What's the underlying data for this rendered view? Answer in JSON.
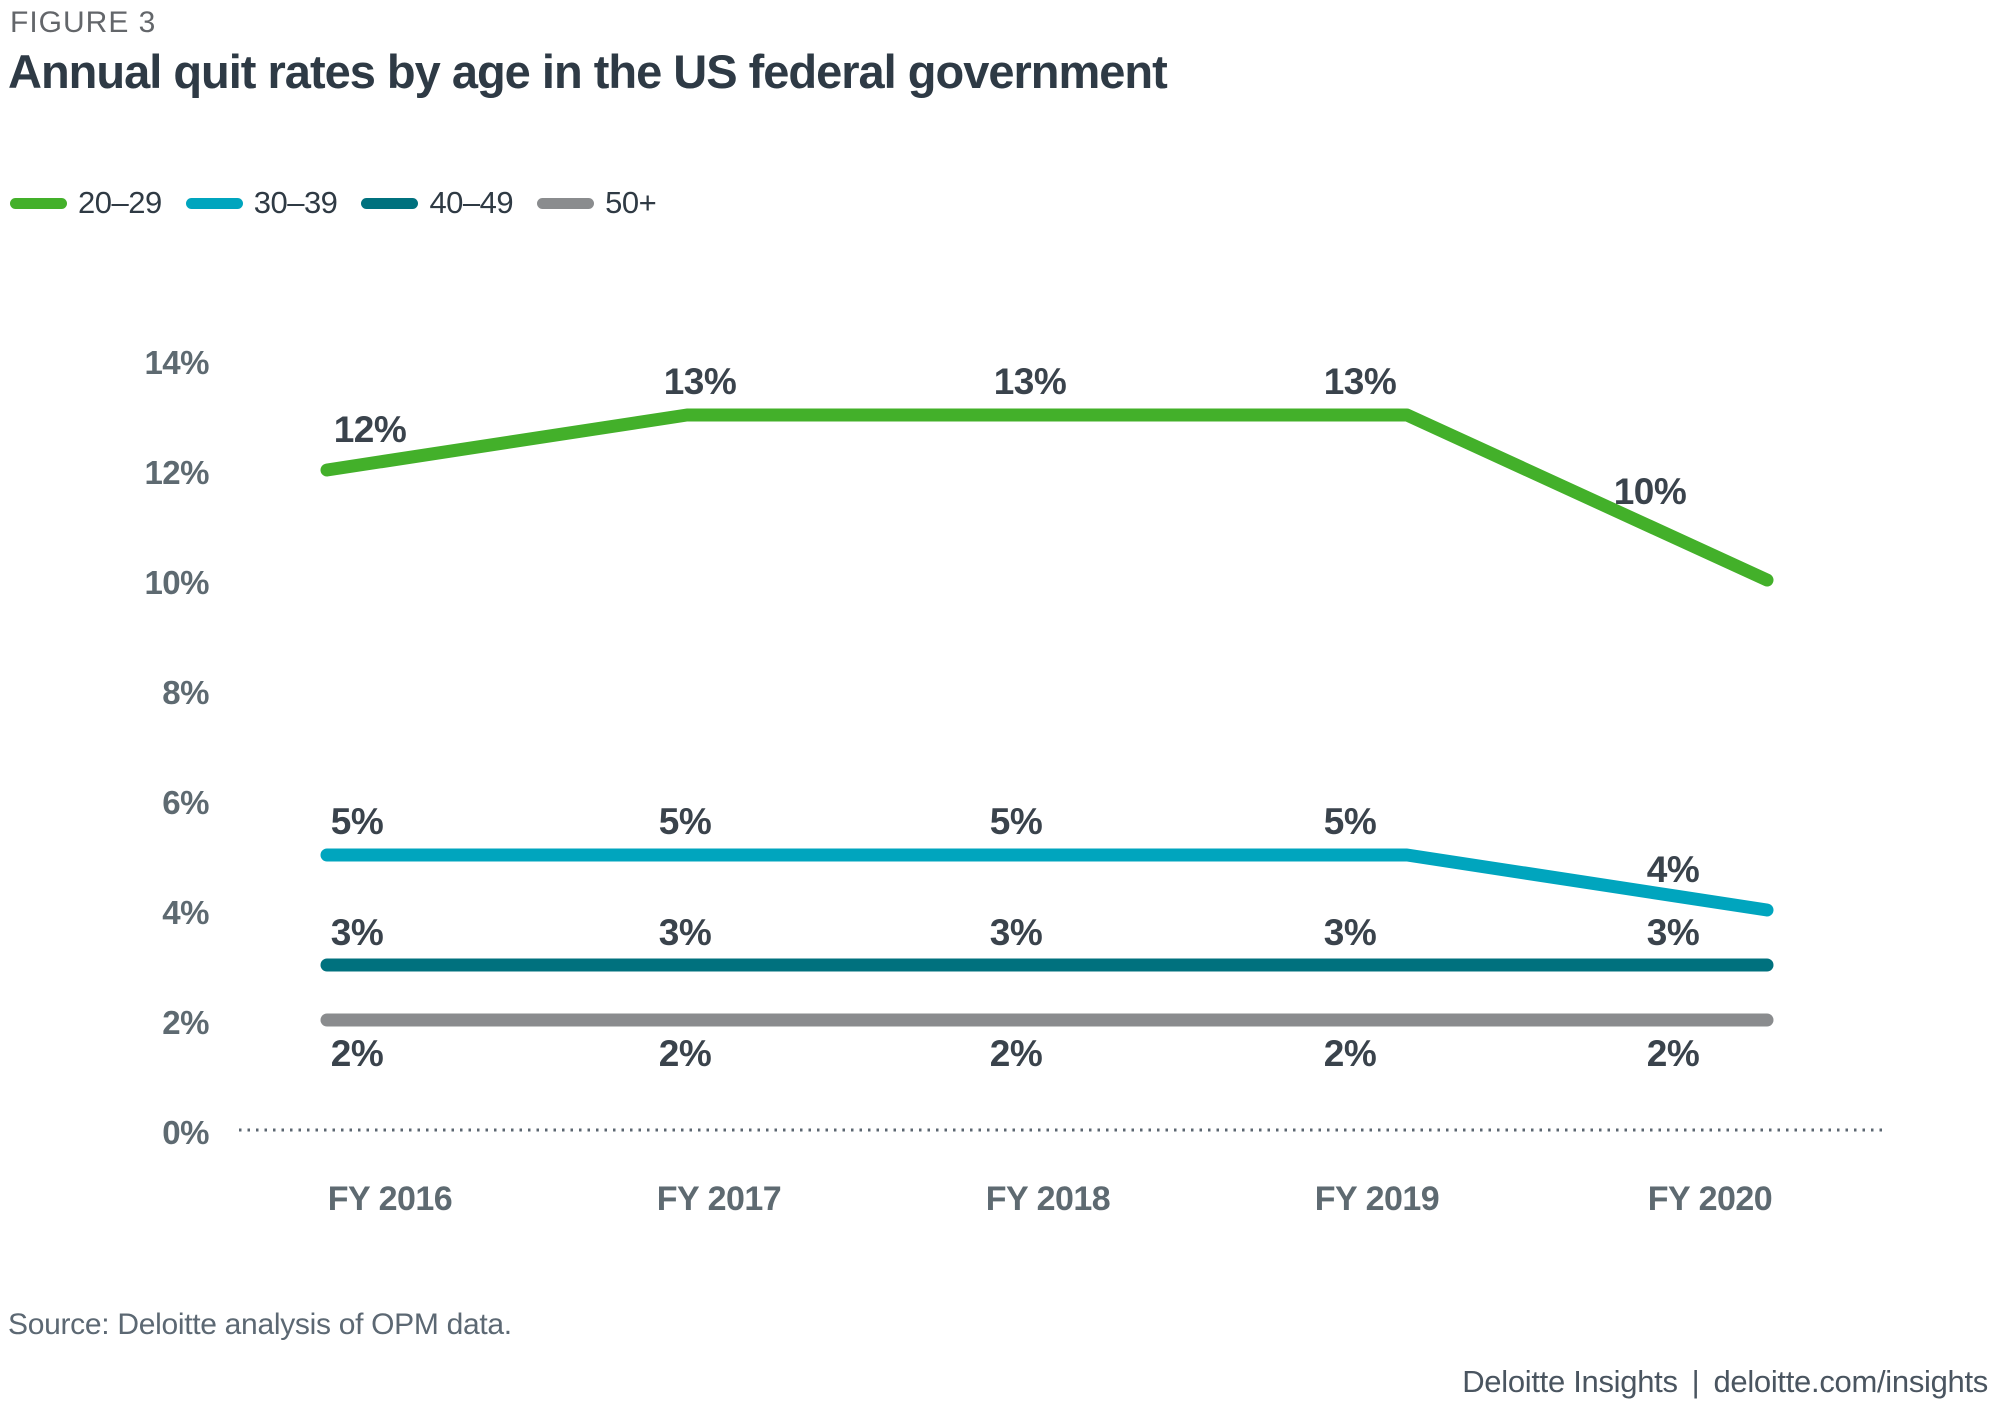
{
  "figure_label": "FIGURE 3",
  "title": "Annual quit rates by age in the US federal government",
  "source": "Source: Deloitte analysis of OPM data.",
  "footer": {
    "brand": "Deloitte Insights",
    "separator": "|",
    "url": "deloitte.com/insights"
  },
  "colors": {
    "green": "#43B02A",
    "cyan": "#00A5BE",
    "teal": "#00717E",
    "gray": "#8A8C8E",
    "axis_text": "#5E6A71",
    "data_label_text": "#3A434C",
    "baseline_dots": "#5B6670"
  },
  "chart_data": {
    "type": "line",
    "title": "Annual quit rates by age in the US federal government",
    "categories": [
      "FY 2016",
      "FY 2017",
      "FY 2018",
      "FY 2019",
      "FY 2020"
    ],
    "series": [
      {
        "name": "20–29",
        "color_key": "green",
        "values": [
          12,
          13,
          13,
          13,
          10
        ],
        "point_labels": [
          "12%",
          "13%",
          "13%",
          "13%",
          "10%"
        ]
      },
      {
        "name": "30–39",
        "color_key": "cyan",
        "values": [
          5,
          5,
          5,
          5,
          4
        ],
        "point_labels": [
          "5%",
          "5%",
          "5%",
          "5%",
          "4%"
        ]
      },
      {
        "name": "40–49",
        "color_key": "teal",
        "values": [
          3,
          3,
          3,
          3,
          3
        ],
        "point_labels": [
          "3%",
          "3%",
          "3%",
          "3%",
          "3%"
        ]
      },
      {
        "name": "50+",
        "color_key": "gray",
        "values": [
          2,
          2,
          2,
          2,
          2
        ],
        "point_labels": [
          "2%",
          "2%",
          "2%",
          "2%",
          "2%"
        ]
      }
    ],
    "y_ticks": [
      "14%",
      "12%",
      "10%",
      "8%",
      "6%",
      "4%",
      "2%",
      "0%"
    ],
    "y_tick_values": [
      14,
      12,
      10,
      8,
      6,
      4,
      2,
      0
    ],
    "ylim": [
      0,
      14
    ],
    "xlabel": "",
    "ylabel": "",
    "unit": "%",
    "grid": "dotted zero baseline only",
    "legend_position": "top-left"
  }
}
